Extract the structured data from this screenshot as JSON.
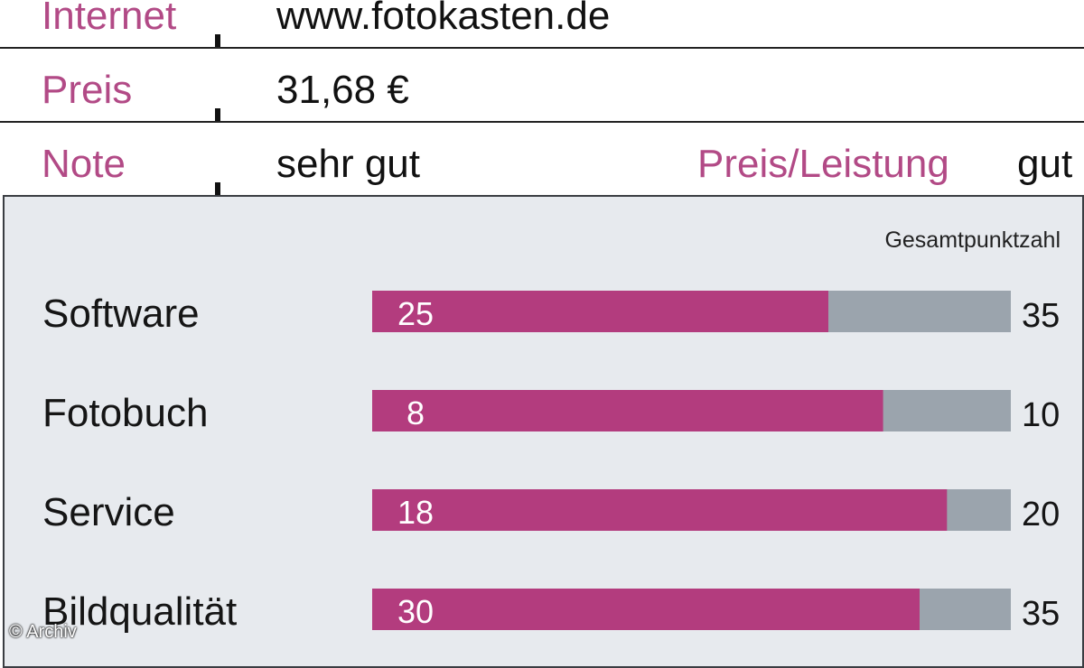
{
  "info": {
    "internet_label": "Internet",
    "internet_value": "www.fotokasten.de",
    "preis_label": "Preis",
    "preis_value": "31,68 €",
    "note_label": "Note",
    "note_value": "sehr gut",
    "pl_label": "Preis/Leistung",
    "pl_value": "gut"
  },
  "total_header": "Gesamtpunktzahl",
  "credit": "© Archiv",
  "colors": {
    "accent": "#b33c7e",
    "bar_remaining": "#9ba4ad",
    "panel_bg": "#e7eaee"
  },
  "chart_data": {
    "type": "bar",
    "orientation": "horizontal",
    "stacked": true,
    "categories": [
      "Software",
      "Fotobuch",
      "Service",
      "Bildqualität"
    ],
    "series": [
      {
        "values": [
          25,
          8,
          18,
          30
        ]
      }
    ],
    "max_values": [
      35,
      10,
      20,
      35
    ]
  }
}
